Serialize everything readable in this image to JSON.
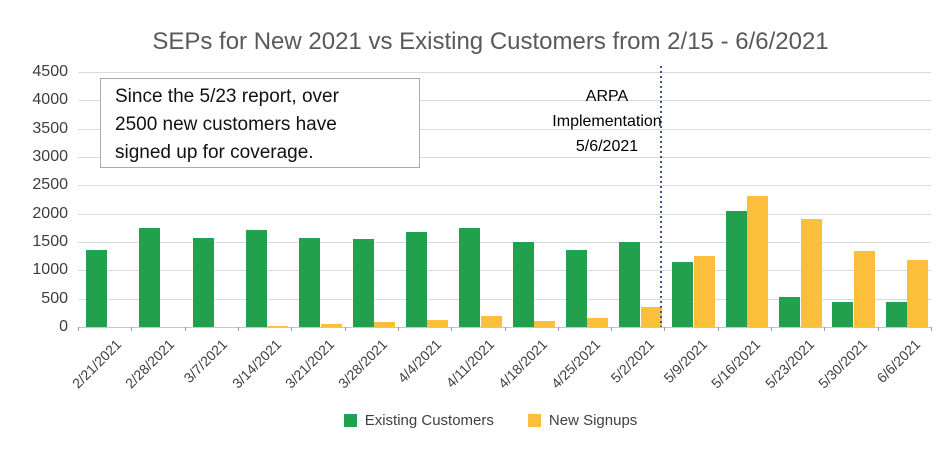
{
  "title": {
    "text": "SEPs for New 2021 vs Existing Customers from 2/15 - 6/6/2021"
  },
  "annotation": {
    "lines": [
      "Since the 5/23 report, over",
      "2500 new customers have",
      "signed up for coverage."
    ]
  },
  "arpa": {
    "lines": [
      "ARPA",
      "Implementation",
      "5/6/2021"
    ]
  },
  "colors": {
    "existing_customers": "#21a14e",
    "new_signups": "#fbbf3c",
    "vline_blue": "#35598e",
    "title_gray": "#595959",
    "gridline_gray": "#dadada"
  },
  "chart_data": {
    "type": "bar",
    "title": "SEPs for New 2021 vs Existing Customers from 2/15 - 6/6/2021",
    "categories": [
      "2/21/2021",
      "2/28/2021",
      "3/7/2021",
      "3/14/2021",
      "3/21/2021",
      "3/28/2021",
      "4/4/2021",
      "4/11/2021",
      "4/18/2021",
      "4/25/2021",
      "5/2/2021",
      "5/9/2021",
      "5/16/2021",
      "5/23/2021",
      "5/30/2021",
      "6/6/2021"
    ],
    "series": [
      {
        "name": "Existing Customers",
        "color": "#21a14e",
        "values": [
          1360,
          1740,
          1570,
          1710,
          1570,
          1550,
          1670,
          1750,
          1500,
          1360,
          1500,
          1150,
          2040,
          530,
          440,
          440
        ]
      },
      {
        "name": "New Signups",
        "color": "#fbbf3c",
        "values": [
          0,
          0,
          0,
          20,
          60,
          90,
          130,
          200,
          110,
          160,
          350,
          1260,
          2310,
          1910,
          1350,
          1180
        ]
      }
    ],
    "xlabel": "",
    "ylabel": "",
    "ylim": [
      0,
      4500
    ],
    "ytick_step": 500,
    "grid": true,
    "legend_position": "bottom",
    "vline": {
      "between_categories": [
        "5/2/2021",
        "5/9/2021"
      ],
      "label": "ARPA Implementation 5/6/2021",
      "color": "#35598e",
      "style": "dotted"
    }
  }
}
